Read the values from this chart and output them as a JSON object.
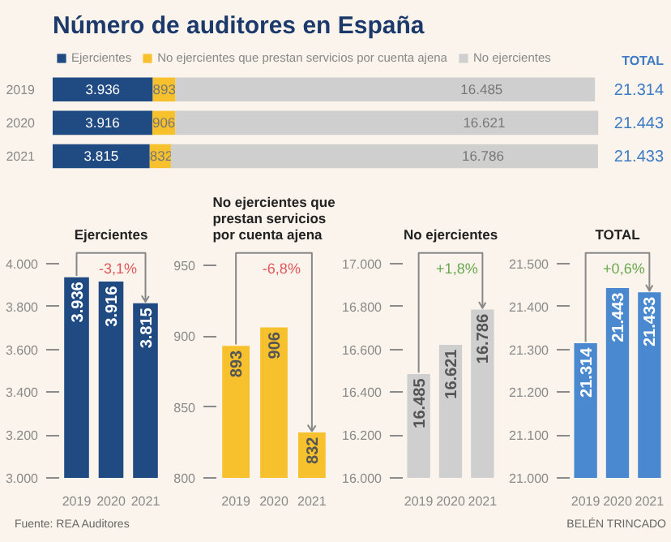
{
  "chart_data": [
    {
      "type": "bar",
      "orientation": "horizontal",
      "stacked": true,
      "title": "Número de auditores en España",
      "categories": [
        "2019",
        "2020",
        "2021"
      ],
      "legend": "top left",
      "series": [
        {
          "name": "Ejercientes",
          "color": "#1f4a82",
          "values": [
            3936,
            3916,
            3815
          ],
          "value_labels": [
            "3.936",
            "3.916",
            "3.815"
          ]
        },
        {
          "name": "No ejercientes que prestan servicios por cuenta ajena",
          "color": "#f7c12d",
          "values": [
            893,
            906,
            832
          ],
          "value_labels": [
            "893",
            "906",
            "832"
          ]
        },
        {
          "name": "No ejercientes",
          "color": "#cfcfcf",
          "values": [
            16485,
            16621,
            16786
          ],
          "value_labels": [
            "16.485",
            "16.621",
            "16.786"
          ]
        }
      ],
      "totals": [
        "21.314",
        "21.443",
        "21.433"
      ],
      "annotations": [
        "TOTAL",
        "Fuente: REA Auditores",
        "BELÉN TRINCADO"
      ]
    },
    {
      "type": "bar",
      "title": "Ejercientes",
      "categories": [
        "2019",
        "2020",
        "2021"
      ],
      "color": "#1f4a82",
      "values": [
        3936,
        3916,
        3815
      ],
      "value_labels": [
        "3.936",
        "3.916",
        "3.815"
      ],
      "ylim": [
        3000,
        4060
      ],
      "yticks": [
        {
          "value": 3000,
          "label": "3.000"
        },
        {
          "value": 3200,
          "label": "3.200"
        },
        {
          "value": 3400,
          "label": "3.400"
        },
        {
          "value": 3600,
          "label": "3.600"
        },
        {
          "value": 3800,
          "label": "3.800"
        },
        {
          "value": 4000,
          "label": "4.000"
        }
      ],
      "annotations": [
        "-3,1%"
      ]
    },
    {
      "type": "bar",
      "title": "No ejercientes que prestan servicios por cuenta ajena",
      "categories": [
        "2019",
        "2020",
        "2021"
      ],
      "color": "#f7c12d",
      "values": [
        893,
        906,
        832
      ],
      "data_labels": true,
      "ylim": [
        800,
        960
      ],
      "yticks": [
        800,
        850,
        900,
        950
      ],
      "annotations": [
        "-6,8%"
      ]
    },
    {
      "type": "bar",
      "title": "No ejercientes",
      "categories": [
        "2019",
        "2020",
        "2021"
      ],
      "color": "#cfcfcf",
      "values": [
        16485,
        16621,
        16786
      ],
      "value_labels": [
        "16.485",
        "16.621",
        "16.786"
      ],
      "ylim": [
        16000,
        17060
      ],
      "yticks": [
        {
          "value": 16000,
          "label": "16.000"
        },
        {
          "value": 16200,
          "label": "16.200"
        },
        {
          "value": 16400,
          "label": "16.400"
        },
        {
          "value": 16600,
          "label": "16.600"
        },
        {
          "value": 16800,
          "label": "16.800"
        },
        {
          "value": 17000,
          "label": "17.000"
        }
      ],
      "annotations": [
        "+1,8%"
      ]
    },
    {
      "type": "bar",
      "title": "TOTAL",
      "categories": [
        "2019",
        "2020",
        "2021"
      ],
      "color": "#4a89cf",
      "values": [
        21314,
        21443,
        21433
      ],
      "value_labels": [
        "21.314",
        "21.443",
        "21.433"
      ],
      "ylim": [
        21000,
        21530
      ],
      "yticks": [
        {
          "value": 21000,
          "label": "21.000"
        },
        {
          "value": 21100,
          "label": "21.100"
        },
        {
          "value": 21200,
          "label": "21.200"
        },
        {
          "value": 21300,
          "label": "21.300"
        },
        {
          "value": 21400,
          "label": "21.400"
        },
        {
          "value": 21500,
          "label": "21.500"
        }
      ],
      "annotations": [
        "+0,6%"
      ]
    }
  ]
}
